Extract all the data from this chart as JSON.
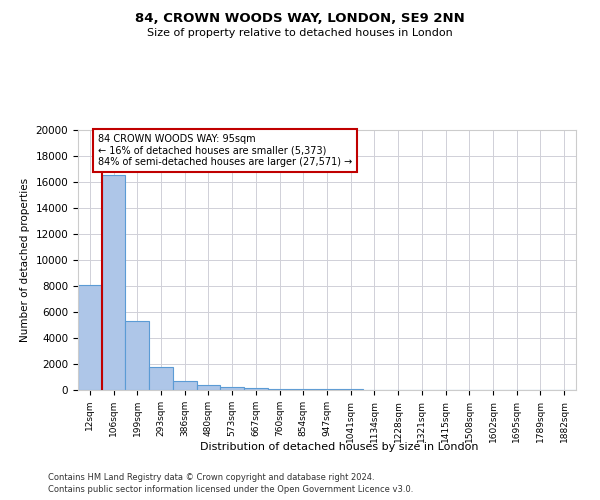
{
  "title": "84, CROWN WOODS WAY, LONDON, SE9 2NN",
  "subtitle": "Size of property relative to detached houses in London",
  "xlabel": "Distribution of detached houses by size in London",
  "ylabel": "Number of detached properties",
  "categories": [
    "12sqm",
    "106sqm",
    "199sqm",
    "293sqm",
    "386sqm",
    "480sqm",
    "573sqm",
    "667sqm",
    "760sqm",
    "854sqm",
    "947sqm",
    "1041sqm",
    "1134sqm",
    "1228sqm",
    "1321sqm",
    "1415sqm",
    "1508sqm",
    "1602sqm",
    "1695sqm",
    "1789sqm",
    "1882sqm"
  ],
  "values": [
    8100,
    16500,
    5300,
    1800,
    680,
    350,
    220,
    140,
    90,
    70,
    55,
    45,
    35,
    28,
    22,
    18,
    14,
    12,
    10,
    8,
    7
  ],
  "bar_color": "#aec6e8",
  "bar_edge_color": "#5b9bd5",
  "vline_color": "#c00000",
  "annotation_text": "84 CROWN WOODS WAY: 95sqm\n← 16% of detached houses are smaller (5,373)\n84% of semi-detached houses are larger (27,571) →",
  "annotation_box_color": "#c00000",
  "ylim": [
    0,
    20000
  ],
  "yticks": [
    0,
    2000,
    4000,
    6000,
    8000,
    10000,
    12000,
    14000,
    16000,
    18000,
    20000
  ],
  "footer_line1": "Contains HM Land Registry data © Crown copyright and database right 2024.",
  "footer_line2": "Contains public sector information licensed under the Open Government Licence v3.0.",
  "bg_color": "#ffffff",
  "grid_color": "#d0d0d8"
}
